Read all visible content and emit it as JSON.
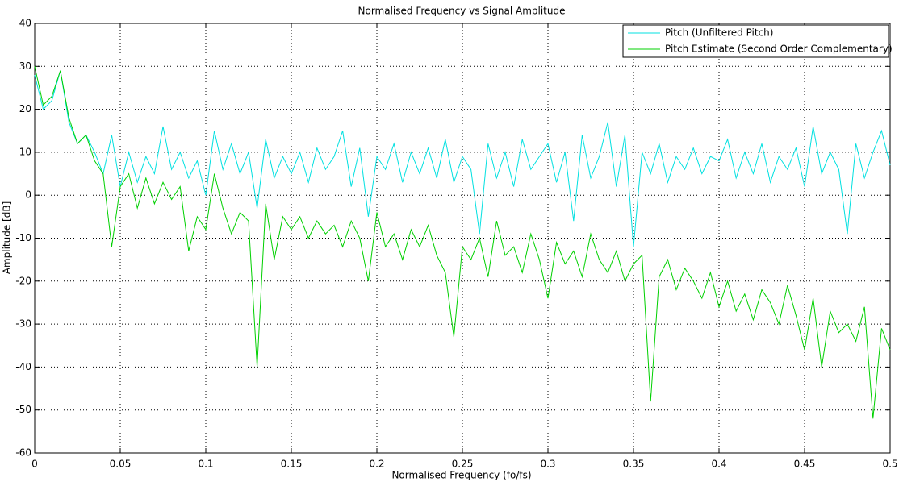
{
  "chart_data": {
    "type": "line",
    "title": "Normalised Frequency vs Signal Amplitude",
    "x_label": "Normalised Frequency (fo/fs)",
    "y_label": "Amplitude [dB]",
    "x": [
      0,
      0.005,
      0.01,
      0.015,
      0.02,
      0.025,
      0.03,
      0.035,
      0.04,
      0.045,
      0.05,
      0.055,
      0.06,
      0.065,
      0.07,
      0.075,
      0.08,
      0.085,
      0.09,
      0.095,
      0.1,
      0.105,
      0.11,
      0.115,
      0.12,
      0.125,
      0.13,
      0.135,
      0.14,
      0.145,
      0.15,
      0.155,
      0.16,
      0.165,
      0.17,
      0.175,
      0.18,
      0.185,
      0.19,
      0.195,
      0.2,
      0.205,
      0.21,
      0.215,
      0.22,
      0.225,
      0.23,
      0.235,
      0.24,
      0.245,
      0.25,
      0.255,
      0.26,
      0.265,
      0.27,
      0.275,
      0.28,
      0.285,
      0.29,
      0.295,
      0.3,
      0.305,
      0.31,
      0.315,
      0.32,
      0.325,
      0.33,
      0.335,
      0.34,
      0.345,
      0.35,
      0.355,
      0.36,
      0.365,
      0.37,
      0.375,
      0.38,
      0.385,
      0.39,
      0.395,
      0.4,
      0.405,
      0.41,
      0.415,
      0.42,
      0.425,
      0.43,
      0.435,
      0.44,
      0.445,
      0.45,
      0.455,
      0.46,
      0.465,
      0.47,
      0.475,
      0.48,
      0.485,
      0.49,
      0.495,
      0.5
    ],
    "series": [
      {
        "name": "Pitch (Unfiltered Pitch)",
        "color": "#00e0e0",
        "values": [
          28,
          20,
          22,
          29,
          17,
          12,
          14,
          10,
          5,
          14,
          2,
          10,
          3,
          9,
          5,
          16,
          6,
          10,
          4,
          8,
          0,
          15,
          6,
          12,
          5,
          10,
          -3,
          13,
          4,
          9,
          5,
          10,
          3,
          11,
          6,
          9,
          15,
          2,
          11,
          -5,
          9,
          6,
          12,
          3,
          10,
          5,
          11,
          4,
          13,
          3,
          9,
          6,
          -9,
          12,
          4,
          10,
          2,
          13,
          6,
          9,
          12,
          3,
          10,
          -6,
          14,
          4,
          9,
          17,
          2,
          14,
          -12,
          10,
          5,
          12,
          3,
          9,
          6,
          11,
          5,
          9,
          8,
          13,
          4,
          10,
          5,
          12,
          3,
          9,
          6,
          11,
          2,
          16,
          5,
          10,
          6,
          -9,
          12,
          4,
          10,
          15,
          7
        ]
      },
      {
        "name": "Pitch Estimate (Second Order Complementary)",
        "color": "#00d000",
        "values": [
          30,
          21,
          23,
          29,
          18,
          12,
          14,
          8,
          5,
          -12,
          2,
          5,
          -3,
          4,
          -2,
          3,
          -1,
          2,
          -13,
          -5,
          -8,
          5,
          -3,
          -9,
          -4,
          -6,
          -40,
          -2,
          -15,
          -5,
          -8,
          -5,
          -10,
          -6,
          -9,
          -7,
          -12,
          -6,
          -10,
          -20,
          -4,
          -12,
          -9,
          -15,
          -8,
          -12,
          -7,
          -14,
          -18,
          -33,
          -12,
          -15,
          -10,
          -19,
          -6,
          -14,
          -12,
          -18,
          -9,
          -15,
          -24,
          -11,
          -16,
          -13,
          -19,
          -9,
          -15,
          -18,
          -13,
          -20,
          -16,
          -14,
          -48,
          -19,
          -15,
          -22,
          -17,
          -20,
          -24,
          -18,
          -26,
          -20,
          -27,
          -23,
          -29,
          -22,
          -25,
          -30,
          -21,
          -28,
          -36,
          -24,
          -40,
          -27,
          -32,
          -30,
          -34,
          -26,
          -52,
          -31,
          -36
        ]
      }
    ],
    "xlim": [
      0,
      0.5
    ],
    "xticks": [
      0,
      0.05,
      0.1,
      0.15,
      0.2,
      0.25,
      0.3,
      0.35,
      0.4,
      0.45,
      0.5
    ],
    "ylim": [
      -60,
      40
    ],
    "yticks": [
      -60,
      -50,
      -40,
      -30,
      -20,
      -10,
      0,
      10,
      20,
      30,
      40
    ],
    "grid": true,
    "legend": "upper right"
  }
}
